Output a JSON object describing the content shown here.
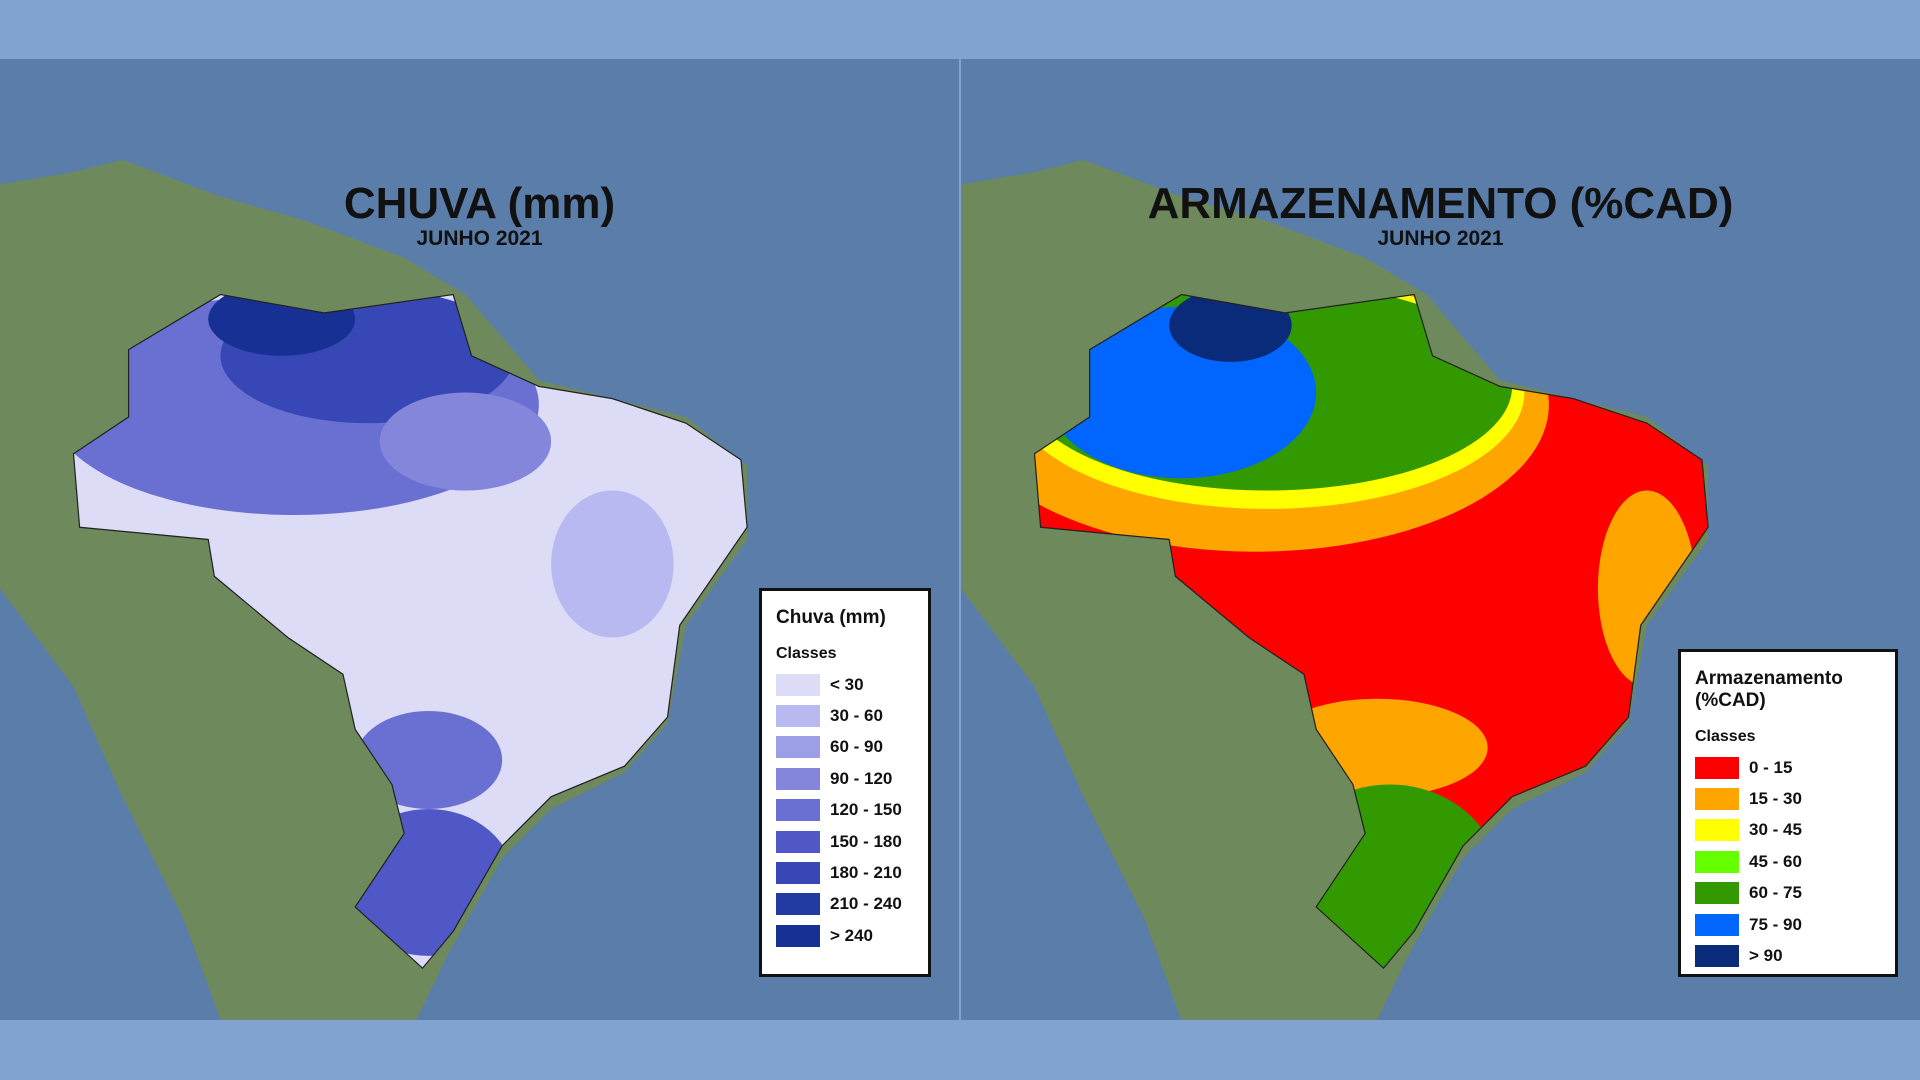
{
  "panels": [
    {
      "title": "CHUVA (mm)",
      "subtitle": "JUNHO 2021",
      "legend": {
        "title": "Chuva (mm)",
        "subtitle": "Classes",
        "classes": [
          {
            "label": "< 30",
            "color": "#dcdcf7"
          },
          {
            "label": "30 - 60",
            "color": "#b8b9f0"
          },
          {
            "label": "60 - 90",
            "color": "#9d9fe6"
          },
          {
            "label": "90 - 120",
            "color": "#8486dc"
          },
          {
            "label": "120 - 150",
            "color": "#6a6fd2"
          },
          {
            "label": "150 - 180",
            "color": "#4f58c6"
          },
          {
            "label": "180 - 210",
            "color": "#3747b5"
          },
          {
            "label": "210 - 240",
            "color": "#243aa3"
          },
          {
            "label": "> 240",
            "color": "#163093"
          }
        ]
      }
    },
    {
      "title": "ARMAZENAMENTO (%CAD)",
      "subtitle": "JUNHO 2021",
      "legend": {
        "title": "Armazenamento (%CAD)",
        "subtitle": "Classes",
        "classes": [
          {
            "label": "0 - 15",
            "color": "#ff0000"
          },
          {
            "label": "15 - 30",
            "color": "#ffa500"
          },
          {
            "label": "30 - 45",
            "color": "#ffff00"
          },
          {
            "label": "45 - 60",
            "color": "#66ff00"
          },
          {
            "label": "60 - 75",
            "color": "#339900"
          },
          {
            "label": "75 - 90",
            "color": "#0066ff"
          },
          {
            "label": "> 90",
            "color": "#0a2a7a"
          }
        ]
      }
    }
  ]
}
